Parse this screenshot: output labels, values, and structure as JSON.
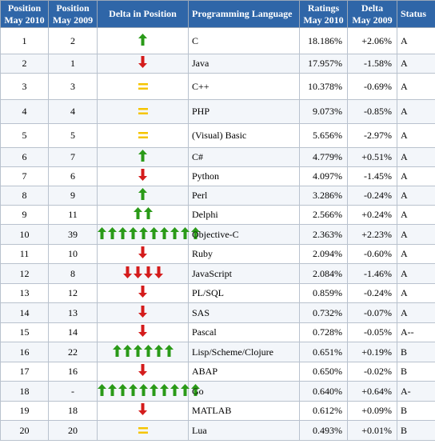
{
  "headers": {
    "pos2010_line1": "Position",
    "pos2010_line2": "May 2010",
    "pos2009_line1": "Position",
    "pos2009_line2": "May 2009",
    "delta_pos": "Delta in Position",
    "language": "Programming Language",
    "ratings_line1": "Ratings",
    "ratings_line2": "May 2010",
    "delta_line1": "Delta",
    "delta_line2": "May 2009",
    "status": "Status"
  },
  "colors": {
    "header_bg": "#2f66a8",
    "up": "#2a9a18",
    "down": "#d41c1c",
    "same": "#f5c400"
  },
  "rows": [
    {
      "pos2010": "1",
      "pos2009": "2",
      "dir": "up",
      "count": 1,
      "language": "C",
      "rating": "18.186%",
      "delta": "+2.06%",
      "status": "A"
    },
    {
      "pos2010": "2",
      "pos2009": "1",
      "dir": "down",
      "count": 1,
      "language": "Java",
      "rating": "17.957%",
      "delta": "-1.58%",
      "status": "A"
    },
    {
      "pos2010": "3",
      "pos2009": "3",
      "dir": "same",
      "count": 1,
      "language": "C++",
      "rating": "10.378%",
      "delta": "-0.69%",
      "status": "A"
    },
    {
      "pos2010": "4",
      "pos2009": "4",
      "dir": "same",
      "count": 1,
      "language": "PHP",
      "rating": "9.073%",
      "delta": "-0.85%",
      "status": "A"
    },
    {
      "pos2010": "5",
      "pos2009": "5",
      "dir": "same",
      "count": 1,
      "language": "(Visual) Basic",
      "rating": "5.656%",
      "delta": "-2.97%",
      "status": "A"
    },
    {
      "pos2010": "6",
      "pos2009": "7",
      "dir": "up",
      "count": 1,
      "language": "C#",
      "rating": "4.779%",
      "delta": "+0.51%",
      "status": "A"
    },
    {
      "pos2010": "7",
      "pos2009": "6",
      "dir": "down",
      "count": 1,
      "language": "Python",
      "rating": "4.097%",
      "delta": "-1.45%",
      "status": "A"
    },
    {
      "pos2010": "8",
      "pos2009": "9",
      "dir": "up",
      "count": 1,
      "language": "Perl",
      "rating": "3.286%",
      "delta": "-0.24%",
      "status": "A"
    },
    {
      "pos2010": "9",
      "pos2009": "11",
      "dir": "up",
      "count": 2,
      "language": "Delphi",
      "rating": "2.566%",
      "delta": "+0.24%",
      "status": "A"
    },
    {
      "pos2010": "10",
      "pos2009": "39",
      "dir": "up",
      "count": 10,
      "language": "Objective-C",
      "rating": "2.363%",
      "delta": "+2.23%",
      "status": "A"
    },
    {
      "pos2010": "11",
      "pos2009": "10",
      "dir": "down",
      "count": 1,
      "language": "Ruby",
      "rating": "2.094%",
      "delta": "-0.60%",
      "status": "A"
    },
    {
      "pos2010": "12",
      "pos2009": "8",
      "dir": "down",
      "count": 4,
      "language": "JavaScript",
      "rating": "2.084%",
      "delta": "-1.46%",
      "status": "A"
    },
    {
      "pos2010": "13",
      "pos2009": "12",
      "dir": "down",
      "count": 1,
      "language": "PL/SQL",
      "rating": "0.859%",
      "delta": "-0.24%",
      "status": "A"
    },
    {
      "pos2010": "14",
      "pos2009": "13",
      "dir": "down",
      "count": 1,
      "language": "SAS",
      "rating": "0.732%",
      "delta": "-0.07%",
      "status": "A"
    },
    {
      "pos2010": "15",
      "pos2009": "14",
      "dir": "down",
      "count": 1,
      "language": "Pascal",
      "rating": "0.728%",
      "delta": "-0.05%",
      "status": "A--"
    },
    {
      "pos2010": "16",
      "pos2009": "22",
      "dir": "up",
      "count": 6,
      "language": "Lisp/Scheme/Clojure",
      "rating": "0.651%",
      "delta": "+0.19%",
      "status": "B"
    },
    {
      "pos2010": "17",
      "pos2009": "16",
      "dir": "down",
      "count": 1,
      "language": "ABAP",
      "rating": "0.650%",
      "delta": "-0.02%",
      "status": "B"
    },
    {
      "pos2010": "18",
      "pos2009": "-",
      "dir": "up",
      "count": 10,
      "language": "Go",
      "rating": "0.640%",
      "delta": "+0.64%",
      "status": "A-"
    },
    {
      "pos2010": "19",
      "pos2009": "18",
      "dir": "down",
      "count": 1,
      "language": "MATLAB",
      "rating": "0.612%",
      "delta": "+0.09%",
      "status": "B"
    },
    {
      "pos2010": "20",
      "pos2009": "20",
      "dir": "same",
      "count": 1,
      "language": "Lua",
      "rating": "0.493%",
      "delta": "+0.01%",
      "status": "B"
    }
  ]
}
